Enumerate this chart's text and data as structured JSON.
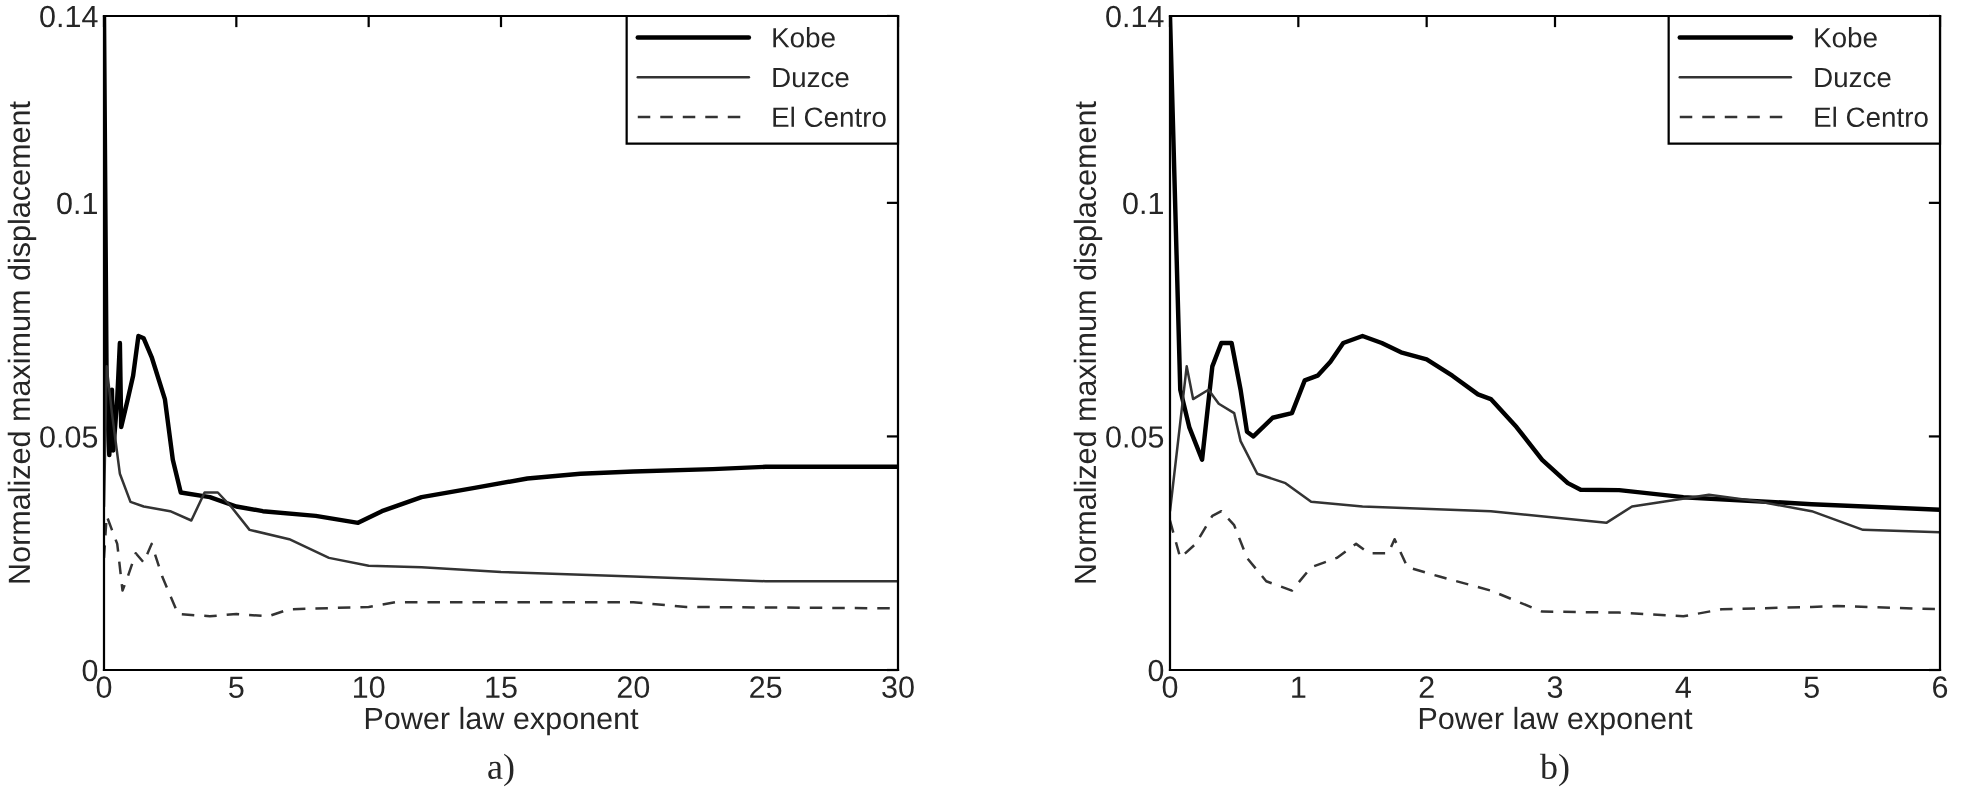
{
  "chart_data": [
    {
      "type": "line",
      "xlabel": "Power law exponent",
      "ylabel": "Normalized maximum displacement",
      "annotations": [
        "a)"
      ],
      "xlim": [
        0,
        30
      ],
      "ylim": [
        0,
        0.14
      ],
      "xticks": [
        0,
        5,
        10,
        15,
        20,
        25,
        30
      ],
      "yticks": [
        0,
        0.05,
        0.1,
        0.14
      ],
      "legend": "top right",
      "grid": false,
      "series": [
        {
          "name": "Kobe",
          "color": "#000000",
          "line_style": "solid",
          "x": [
            0,
            0.1,
            0.2,
            0.3,
            0.35,
            0.5,
            0.6,
            0.65,
            0.9,
            1.1,
            1.3,
            1.5,
            1.8,
            2.3,
            2.6,
            2.9,
            4,
            5,
            6,
            8,
            9.6,
            10.5,
            12,
            14,
            16,
            18,
            20,
            23,
            25,
            30
          ],
          "values": [
            0.14,
            0.06,
            0.046,
            0.06,
            0.047,
            0.058,
            0.07,
            0.052,
            0.058,
            0.063,
            0.0715,
            0.071,
            0.067,
            0.058,
            0.045,
            0.038,
            0.037,
            0.035,
            0.034,
            0.033,
            0.0315,
            0.034,
            0.037,
            0.039,
            0.041,
            0.042,
            0.0425,
            0.043,
            0.0435,
            0.0435
          ]
        },
        {
          "name": "Duzce",
          "color": "#333333",
          "line_style": "solid",
          "x": [
            0,
            0.1,
            0.3,
            0.6,
            1,
            1.5,
            2.5,
            3.3,
            3.8,
            4.3,
            4.8,
            5.5,
            7,
            8.5,
            10,
            12,
            15,
            20,
            25,
            30
          ],
          "values": [
            0.035,
            0.065,
            0.055,
            0.042,
            0.036,
            0.035,
            0.034,
            0.032,
            0.038,
            0.038,
            0.035,
            0.03,
            0.028,
            0.024,
            0.0223,
            0.022,
            0.021,
            0.02,
            0.019,
            0.019
          ]
        },
        {
          "name": "El Centro",
          "color": "#333333",
          "line_style": "dashed",
          "x": [
            0,
            0.1,
            0.3,
            0.5,
            0.7,
            0.9,
            1.2,
            1.5,
            1.8,
            2.2,
            2.8,
            4,
            5,
            6.2,
            7,
            10,
            11,
            15,
            20,
            22,
            30
          ],
          "values": [
            0.024,
            0.033,
            0.03,
            0.027,
            0.017,
            0.02,
            0.025,
            0.023,
            0.027,
            0.02,
            0.012,
            0.0115,
            0.012,
            0.0115,
            0.013,
            0.0135,
            0.0145,
            0.0145,
            0.0145,
            0.0135,
            0.0132
          ]
        }
      ]
    },
    {
      "type": "line",
      "xlabel": "Power law exponent",
      "ylabel": "Normalized maximum displacement",
      "annotations": [
        "b)"
      ],
      "xlim": [
        0,
        6
      ],
      "ylim": [
        0,
        0.14
      ],
      "xticks": [
        0,
        1,
        2,
        3,
        4,
        5,
        6
      ],
      "yticks": [
        0,
        0.05,
        0.1,
        0.14
      ],
      "legend": "top right",
      "grid": false,
      "series": [
        {
          "name": "Kobe",
          "color": "#000000",
          "line_style": "solid",
          "x": [
            0,
            0.08,
            0.15,
            0.25,
            0.33,
            0.4,
            0.48,
            0.55,
            0.6,
            0.65,
            0.8,
            0.95,
            1.05,
            1.15,
            1.25,
            1.35,
            1.5,
            1.65,
            1.8,
            2.0,
            2.2,
            2.4,
            2.5,
            2.7,
            2.9,
            3.1,
            3.2,
            3.5,
            4,
            5,
            6
          ],
          "values": [
            0.14,
            0.06,
            0.052,
            0.045,
            0.065,
            0.07,
            0.07,
            0.06,
            0.051,
            0.05,
            0.054,
            0.055,
            0.062,
            0.063,
            0.066,
            0.07,
            0.0715,
            0.07,
            0.068,
            0.0665,
            0.063,
            0.059,
            0.058,
            0.052,
            0.045,
            0.04,
            0.0386,
            0.0385,
            0.037,
            0.0355,
            0.0343
          ]
        },
        {
          "name": "Duzce",
          "color": "#333333",
          "line_style": "solid",
          "x": [
            0,
            0.08,
            0.13,
            0.18,
            0.3,
            0.38,
            0.5,
            0.55,
            0.68,
            0.9,
            1.1,
            1.5,
            2.5,
            3.4,
            3.6,
            4.2,
            4.6,
            5.0,
            5.4,
            6
          ],
          "values": [
            0.034,
            0.053,
            0.065,
            0.058,
            0.06,
            0.057,
            0.055,
            0.049,
            0.042,
            0.04,
            0.036,
            0.035,
            0.034,
            0.0315,
            0.035,
            0.0375,
            0.036,
            0.034,
            0.03,
            0.0295
          ]
        },
        {
          "name": "El Centro",
          "color": "#333333",
          "line_style": "dashed",
          "x": [
            0,
            0.08,
            0.2,
            0.33,
            0.4,
            0.5,
            0.6,
            0.75,
            0.95,
            1.1,
            1.3,
            1.45,
            1.55,
            1.7,
            1.75,
            1.85,
            2.1,
            2.5,
            2.9,
            3.5,
            4.0,
            4.3,
            5,
            5.2,
            6
          ],
          "values": [
            0.032,
            0.024,
            0.027,
            0.033,
            0.034,
            0.031,
            0.024,
            0.019,
            0.017,
            0.022,
            0.024,
            0.027,
            0.025,
            0.025,
            0.028,
            0.022,
            0.02,
            0.017,
            0.0125,
            0.0123,
            0.0115,
            0.013,
            0.0135,
            0.0137,
            0.013
          ]
        }
      ]
    }
  ]
}
